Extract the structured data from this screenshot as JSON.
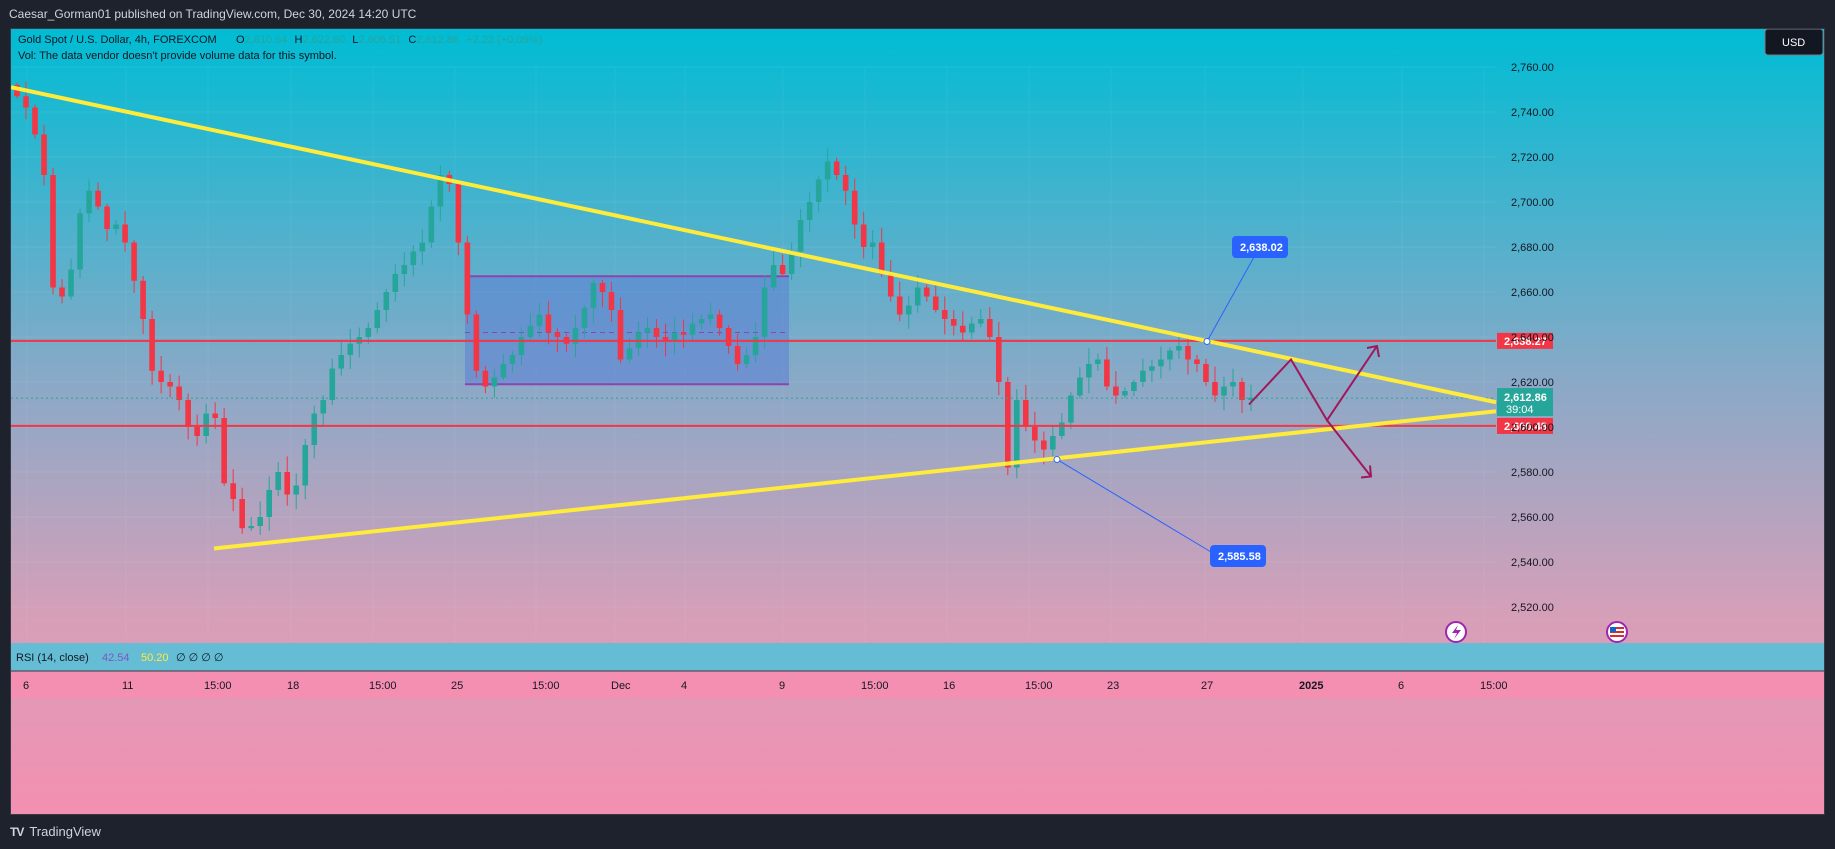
{
  "header": {
    "publisher": "Caesar_Gorman01 published on TradingView.com, Dec 30, 2024 14:20 UTC"
  },
  "legend": {
    "symbol": "Gold Spot / U.S. Dollar, 4h, FOREXCOM",
    "o_label": "O",
    "o_value": "2,610.64",
    "h_label": "H",
    "h_value": "2,622.60",
    "l_label": "L",
    "l_value": "2,605.51",
    "c_label": "C",
    "c_value": "2,612.86",
    "change": "+2.22 (+0.09%)",
    "vol_note": "Vol: The data vendor doesn't provide volume data for this symbol."
  },
  "currency_button": "USD",
  "rsi": {
    "label": "RSI (14, close)",
    "value1": "42.54",
    "value2": "50.20",
    "placeholders": "∅ ∅ ∅ ∅"
  },
  "footer": {
    "brand": "TradingView",
    "logo_mark": "TV"
  },
  "colors": {
    "up": "#26a69a",
    "down": "#f23645",
    "trendline": "#ffeb3b",
    "level": "#f23645",
    "range_box": "#5b7fd6",
    "range_border": "#8e44ad",
    "projection": "#a0175a",
    "callout": "#2962ff"
  },
  "chart_data": {
    "type": "candlestick",
    "symbol": "XAUUSD",
    "timeframe": "4h",
    "price_axis": [
      "2,760.00",
      "2,740.00",
      "2,720.00",
      "2,700.00",
      "2,680.00",
      "2,660.00",
      "2,640.00",
      "2,620.00",
      "2,600.00",
      "2,580.00",
      "2,560.00",
      "2,540.00",
      "2,520.00"
    ],
    "price_ticks": [
      2760,
      2740,
      2720,
      2700,
      2680,
      2660,
      2640,
      2620,
      2600,
      2580,
      2560,
      2540,
      2520
    ],
    "time_axis": [
      "6",
      "11",
      "15:00",
      "18",
      "15:00",
      "25",
      "15:00",
      "Dec",
      "4",
      "9",
      "15:00",
      "16",
      "15:00",
      "23",
      "27",
      "2025",
      "6",
      "15:00"
    ],
    "time_axis_bold": "2025",
    "levels": [
      {
        "price": 2638.27,
        "label": "2,638.27"
      },
      {
        "price": 2600.48,
        "label": "2,600.48"
      }
    ],
    "last_price": {
      "price": 2612.86,
      "label": "2,612.86",
      "countdown": "39:04"
    },
    "callouts": [
      {
        "label": "2,638.02",
        "price": 2638.02
      },
      {
        "label": "2,585.58",
        "price": 2585.58
      }
    ],
    "trendlines": [
      {
        "name": "descending resistance",
        "from": 2751,
        "to": 2611
      },
      {
        "name": "ascending support",
        "from": 2546,
        "to": 2607
      }
    ],
    "range_box": {
      "top": 2667,
      "bottom": 2619,
      "mid": 2642
    },
    "closes": [
      2747,
      2742,
      2730,
      2712,
      2662,
      2658,
      2670,
      2695,
      2705,
      2698,
      2688,
      2690,
      2682,
      2665,
      2648,
      2625,
      2620,
      2618,
      2612,
      2600,
      2596,
      2606,
      2604,
      2575,
      2568,
      2555,
      2556,
      2560,
      2572,
      2580,
      2570,
      2574,
      2592,
      2606,
      2612,
      2626,
      2632,
      2637,
      2640,
      2644,
      2652,
      2660,
      2668,
      2672,
      2678,
      2682,
      2698,
      2712,
      2708,
      2682,
      2650,
      2625,
      2618,
      2622,
      2628,
      2632,
      2640,
      2645,
      2650,
      2642,
      2640,
      2637,
      2644,
      2653,
      2664,
      2660,
      2652,
      2630,
      2635,
      2642,
      2644,
      2640,
      2638,
      2642,
      2641,
      2646,
      2648,
      2650,
      2644,
      2636,
      2628,
      2632,
      2640,
      2662,
      2672,
      2668,
      2678,
      2692,
      2700,
      2710,
      2718,
      2712,
      2705,
      2690,
      2680,
      2682,
      2668,
      2658,
      2650,
      2654,
      2662,
      2658,
      2652,
      2648,
      2645,
      2642,
      2646,
      2648,
      2640,
      2620,
      2582,
      2612,
      2600,
      2594,
      2590,
      2596,
      2602,
      2614,
      2622,
      2628,
      2630,
      2618,
      2614,
      2616,
      2620,
      2625,
      2627,
      2630,
      2634,
      2636,
      2630,
      2628,
      2620,
      2614,
      2618,
      2620,
      2612,
      2613
    ],
    "projection_path": [
      2610,
      2630,
      2603,
      2636
    ],
    "projection_alt": [
      2603,
      2578
    ]
  }
}
